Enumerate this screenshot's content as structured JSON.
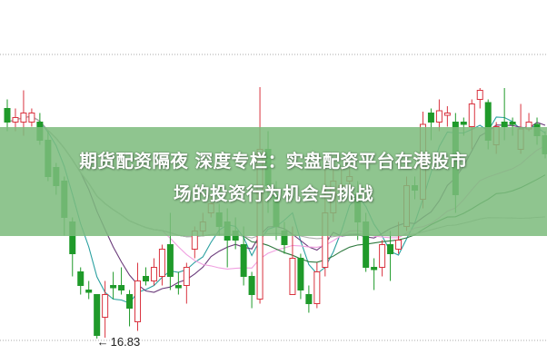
{
  "banner": {
    "title_line1": "期货配资隔夜 深度专栏：实盘配资平台在港股市",
    "title_line2": "场的投资行为机会与挑战",
    "color": "#7dbc7d"
  },
  "chart_data": {
    "type": "candlestick",
    "title": "",
    "grid": "dotted horizontal lines",
    "up_color": "#d9333f",
    "down_color": "#1f9a2a",
    "ma_colors": [
      "#2aa0a0",
      "#6a3a7a",
      "#f0a0e0",
      "#2f7a3f",
      "#b0b0b0"
    ],
    "ma_periods": [
      5,
      10,
      20,
      30,
      60
    ],
    "low_label": "16.83",
    "ylim": [
      16.6,
      23.1
    ],
    "candles": [
      [
        21.9,
        21.6,
        22.1,
        21.4
      ],
      [
        21.6,
        21.7,
        21.9,
        21.4
      ],
      [
        21.6,
        21.8,
        22.3,
        21.3
      ],
      [
        21.6,
        21.8,
        21.9,
        21.5
      ],
      [
        21.6,
        21.2,
        21.8,
        21.1
      ],
      [
        21.2,
        20.4,
        21.4,
        20.3
      ],
      [
        20.6,
        20.2,
        20.7,
        20.0
      ],
      [
        20.3,
        19.5,
        20.4,
        19.1
      ],
      [
        19.4,
        18.7,
        19.5,
        18.2
      ],
      [
        18.3,
        18.0,
        18.4,
        17.8
      ],
      [
        17.9,
        17.85,
        18.1,
        17.7
      ],
      [
        17.8,
        16.9,
        17.8,
        16.83
      ],
      [
        17.3,
        17.8,
        18.1,
        16.85
      ],
      [
        18.0,
        17.95,
        18.3,
        17.7
      ],
      [
        18.0,
        17.9,
        18.4,
        17.8
      ],
      [
        17.8,
        17.5,
        17.9,
        17.1
      ],
      [
        17.2,
        18.1,
        18.5,
        17.0
      ],
      [
        18.2,
        18.1,
        18.4,
        18.0
      ],
      [
        18.1,
        18.4,
        18.6,
        18.0
      ],
      [
        18.2,
        18.8,
        18.9,
        18.0
      ],
      [
        18.9,
        18.2,
        19.6,
        17.9
      ],
      [
        18.0,
        17.95,
        18.3,
        17.8
      ],
      [
        18.0,
        18.4,
        18.5,
        17.6
      ],
      [
        18.8,
        19.2,
        19.3,
        18.6
      ],
      [
        19.2,
        19.4,
        19.6,
        19.1
      ],
      [
        19.6,
        19.8,
        20.0,
        19.5
      ],
      [
        19.6,
        19.3,
        19.8,
        19.1
      ],
      [
        19.4,
        19.0,
        19.7,
        18.4
      ],
      [
        19.2,
        19.0,
        19.5,
        18.8
      ],
      [
        18.9,
        18.2,
        19.3,
        18.0
      ],
      [
        18.2,
        17.8,
        18.3,
        17.5
      ],
      [
        17.7,
        21.0,
        22.37,
        17.6
      ],
      [
        21.0,
        20.2,
        21.4,
        19.6
      ],
      [
        20.0,
        19.3,
        20.3,
        19.0
      ],
      [
        19.2,
        18.9,
        19.4,
        18.7
      ],
      [
        17.8,
        18.6,
        19.3,
        17.8
      ],
      [
        18.6,
        17.9,
        18.7,
        17.7
      ],
      [
        17.8,
        17.6,
        18.0,
        17.4
      ],
      [
        17.6,
        18.3,
        18.5,
        17.5
      ],
      [
        18.4,
        19.6,
        20.6,
        18.2
      ],
      [
        19.6,
        20.3,
        20.8,
        19.4
      ],
      [
        20.1,
        20.2,
        20.6,
        19.9
      ],
      [
        20.3,
        20.4,
        20.6,
        20.0
      ],
      [
        20.0,
        19.4,
        20.3,
        19.0
      ],
      [
        19.4,
        18.4,
        19.6,
        18.3
      ],
      [
        18.4,
        18.35,
        18.6,
        17.9
      ],
      [
        18.4,
        18.9,
        19.0,
        18.2
      ],
      [
        18.9,
        18.7,
        19.2,
        18.1
      ],
      [
        18.8,
        19.0,
        19.4,
        18.7
      ],
      [
        19.3,
        20.2,
        20.4,
        19.2
      ],
      [
        20.2,
        20.1,
        20.4,
        19.9
      ],
      [
        19.9,
        21.55,
        21.83,
        19.7
      ],
      [
        21.8,
        21.6,
        21.9,
        21.2
      ],
      [
        21.6,
        21.85,
        22.1,
        21.4
      ],
      [
        21.75,
        21.8,
        21.95,
        21.5
      ],
      [
        21.6,
        20.0,
        21.8,
        19.6
      ],
      [
        21.6,
        21.55,
        21.7,
        21.3
      ],
      [
        21.5,
        22.0,
        22.1,
        21.0
      ],
      [
        22.1,
        22.3,
        22.35,
        21.9
      ],
      [
        22.03,
        21.2,
        22.1,
        21.0
      ],
      [
        21.1,
        21.5,
        21.6,
        20.9
      ],
      [
        21.6,
        21.5,
        22.35,
        21.2
      ],
      [
        21.6,
        21.55,
        21.7,
        21.3
      ],
      [
        21.0,
        21.45,
        22.0,
        20.9
      ],
      [
        21.45,
        21.6,
        21.8,
        21.4
      ],
      [
        21.55,
        21.3,
        21.7,
        21.1
      ],
      [
        21.3,
        20.9,
        21.4,
        20.8
      ]
    ]
  }
}
